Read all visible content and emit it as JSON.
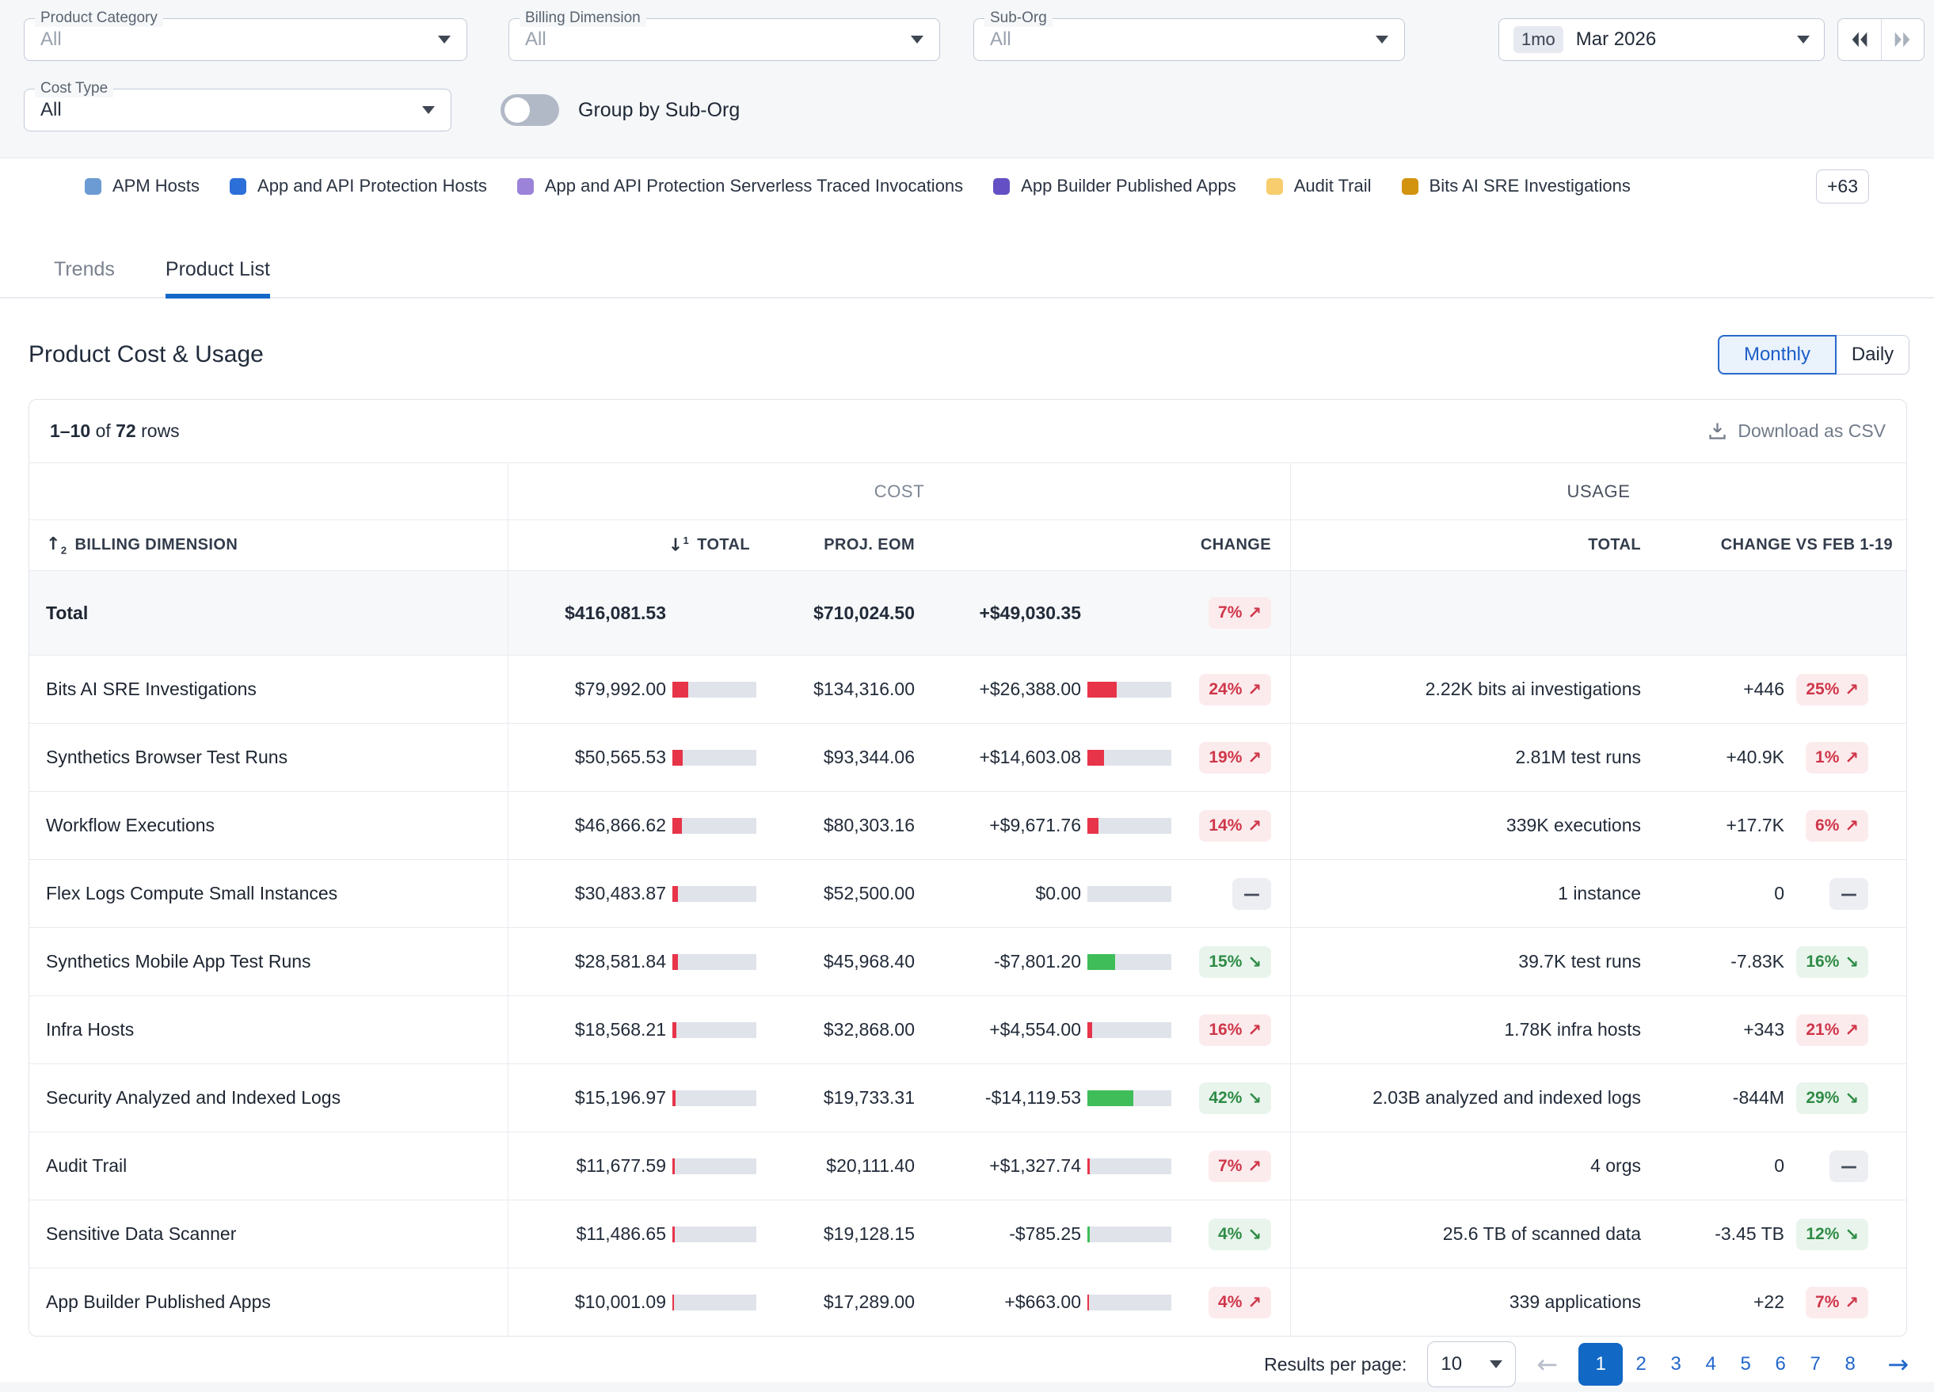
{
  "filters": {
    "product_category": {
      "label": "Product Category",
      "value": "All"
    },
    "billing_dimension": {
      "label": "Billing Dimension",
      "value": "All"
    },
    "sub_org": {
      "label": "Sub-Org",
      "value": "All"
    },
    "cost_type": {
      "label": "Cost Type",
      "value": "All"
    },
    "group_by_label": "Group by Sub-Org",
    "date_picker": {
      "range_badge": "1mo",
      "value": "Mar 2026"
    }
  },
  "legend": {
    "items": [
      {
        "label": "APM Hosts",
        "color": "#6b9bd2"
      },
      {
        "label": "App and API Protection Hosts",
        "color": "#2d6fd9"
      },
      {
        "label": "App and API Protection Serverless Traced Invocations",
        "color": "#9b83d9"
      },
      {
        "label": "App Builder Published Apps",
        "color": "#6450c4"
      },
      {
        "label": "Audit Trail",
        "color": "#f7cd6d"
      },
      {
        "label": "Bits AI SRE Investigations",
        "color": "#d2930f"
      }
    ],
    "overflow_badge": "+63"
  },
  "tabs": [
    {
      "label": "Trends",
      "active": false
    },
    {
      "label": "Product List",
      "active": true
    }
  ],
  "section": {
    "title": "Product Cost & Usage",
    "granularity": [
      {
        "label": "Monthly",
        "active": true
      },
      {
        "label": "Daily",
        "active": false
      }
    ]
  },
  "table": {
    "rows_summary": {
      "range": "1–10",
      "of": "of",
      "total": "72",
      "rows_word": "rows"
    },
    "download_label": "Download as CSV",
    "group_headers": {
      "cost": "COST",
      "usage": "USAGE"
    },
    "columns": {
      "dimension": "BILLING DIMENSION",
      "dimension_sort_rank": "2",
      "cost_total": "TOTAL",
      "cost_total_sort_rank": "1",
      "proj_eom": "PROJ. EOM",
      "cost_change": "CHANGE",
      "usage_total": "TOTAL",
      "usage_change": "CHANGE VS FEB 1-19"
    },
    "total_row": {
      "dimension": "Total",
      "total": "$416,081.53",
      "proj_eom": "$710,024.50",
      "change": "+$49,030.35",
      "change_pct": "7%",
      "change_dir": "up"
    },
    "rows": [
      {
        "dimension": "Bits AI SRE Investigations",
        "total": "$79,992.00",
        "total_bar": 0.19,
        "proj_eom": "$134,316.00",
        "change": "+$26,388.00",
        "change_bar": 0.35,
        "change_dir": "up",
        "change_pct": "24%",
        "usage_total": "2.22K bits ai investigations",
        "usage_change": "+446",
        "usage_pct": "25%",
        "usage_dir": "up"
      },
      {
        "dimension": "Synthetics Browser Test Runs",
        "total": "$50,565.53",
        "total_bar": 0.12,
        "proj_eom": "$93,344.06",
        "change": "+$14,603.08",
        "change_bar": 0.2,
        "change_dir": "up",
        "change_pct": "19%",
        "usage_total": "2.81M test runs",
        "usage_change": "+40.9K",
        "usage_pct": "1%",
        "usage_dir": "up"
      },
      {
        "dimension": "Workflow Executions",
        "total": "$46,866.62",
        "total_bar": 0.11,
        "proj_eom": "$80,303.16",
        "change": "+$9,671.76",
        "change_bar": 0.13,
        "change_dir": "up",
        "change_pct": "14%",
        "usage_total": "339K executions",
        "usage_change": "+17.7K",
        "usage_pct": "6%",
        "usage_dir": "up"
      },
      {
        "dimension": "Flex Logs Compute Small Instances",
        "total": "$30,483.87",
        "total_bar": 0.073,
        "proj_eom": "$52,500.00",
        "change": "$0.00",
        "change_bar": 0,
        "change_dir": "flat",
        "change_pct": "",
        "usage_total": "1 instance",
        "usage_change": "0",
        "usage_pct": "",
        "usage_dir": "flat"
      },
      {
        "dimension": "Synthetics Mobile App Test Runs",
        "total": "$28,581.84",
        "total_bar": 0.069,
        "proj_eom": "$45,968.40",
        "change": "-$7,801.20",
        "change_bar": 0.33,
        "change_dir": "down",
        "change_pct": "15%",
        "usage_total": "39.7K test runs",
        "usage_change": "-7.83K",
        "usage_pct": "16%",
        "usage_dir": "down"
      },
      {
        "dimension": "Infra Hosts",
        "total": "$18,568.21",
        "total_bar": 0.045,
        "proj_eom": "$32,868.00",
        "change": "+$4,554.00",
        "change_bar": 0.06,
        "change_dir": "up",
        "change_pct": "16%",
        "usage_total": "1.78K infra hosts",
        "usage_change": "+343",
        "usage_pct": "21%",
        "usage_dir": "up"
      },
      {
        "dimension": "Security Analyzed and Indexed Logs",
        "total": "$15,196.97",
        "total_bar": 0.037,
        "proj_eom": "$19,733.31",
        "change": "-$14,119.53",
        "change_bar": 0.55,
        "change_dir": "down",
        "change_pct": "42%",
        "usage_total": "2.03B analyzed and indexed logs",
        "usage_change": "-844M",
        "usage_pct": "29%",
        "usage_dir": "down"
      },
      {
        "dimension": "Audit Trail",
        "total": "$11,677.59",
        "total_bar": 0.028,
        "proj_eom": "$20,111.40",
        "change": "+$1,327.74",
        "change_bar": 0.025,
        "change_dir": "up",
        "change_pct": "7%",
        "usage_total": "4 orgs",
        "usage_change": "0",
        "usage_pct": "",
        "usage_dir": "flat"
      },
      {
        "dimension": "Sensitive Data Scanner",
        "total": "$11,486.65",
        "total_bar": 0.028,
        "proj_eom": "$19,128.15",
        "change": "-$785.25",
        "change_bar": 0.025,
        "change_dir": "down",
        "change_pct": "4%",
        "usage_total": "25.6 TB of scanned data",
        "usage_change": "-3.45 TB",
        "usage_pct": "12%",
        "usage_dir": "down"
      },
      {
        "dimension": "App Builder Published Apps",
        "total": "$10,001.09",
        "total_bar": 0.024,
        "proj_eom": "$17,289.00",
        "change": "+$663.00",
        "change_bar": 0.015,
        "change_dir": "up",
        "change_pct": "4%",
        "usage_total": "339 applications",
        "usage_change": "+22",
        "usage_pct": "7%",
        "usage_dir": "up"
      }
    ]
  },
  "pagination": {
    "per_page_label": "Results per page:",
    "per_page_value": "10",
    "pages": [
      "1",
      "2",
      "3",
      "4",
      "5",
      "6",
      "7",
      "8"
    ],
    "current": "1"
  },
  "icons": {
    "up": "↗",
    "down": "↘",
    "flat": "—",
    "prev": "←",
    "next": "→",
    "sort_up": "↑",
    "sort_down": "↓"
  },
  "colors": {
    "accent_blue": "#1368c8",
    "badge_red_text": "#cf3649",
    "badge_red_bg": "#fcebed",
    "badge_green_text": "#2f8b46",
    "badge_green_bg": "#e9f5ec",
    "bar_red": "#e73449",
    "bar_green": "#3fbd58",
    "bar_bg": "#e0e3ea"
  }
}
